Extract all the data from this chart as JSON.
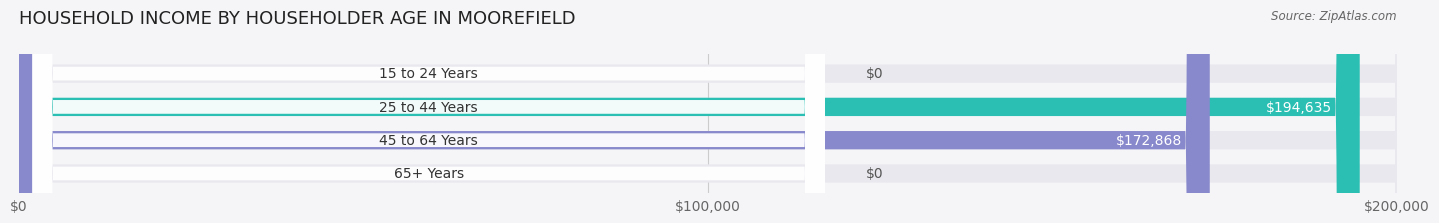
{
  "title": "HOUSEHOLD INCOME BY HOUSEHOLDER AGE IN MOOREFIELD",
  "source": "Source: ZipAtlas.com",
  "categories": [
    "15 to 24 Years",
    "25 to 44 Years",
    "45 to 64 Years",
    "65+ Years"
  ],
  "values": [
    0,
    194635,
    172868,
    0
  ],
  "bar_colors": [
    "#d8a8c8",
    "#2bbfb3",
    "#8888cc",
    "#f0a0b8"
  ],
  "track_color": "#e8e8ee",
  "xlim": [
    0,
    200000
  ],
  "xticks": [
    0,
    100000,
    200000
  ],
  "xtick_labels": [
    "$0",
    "$100,000",
    "$200,000"
  ],
  "value_labels": [
    "$0",
    "$194,635",
    "$172,868",
    "$0"
  ],
  "background_color": "#f5f5f8",
  "bar_height": 0.55,
  "title_fontsize": 13,
  "tick_fontsize": 10,
  "label_fontsize": 10,
  "value_fontsize": 10
}
